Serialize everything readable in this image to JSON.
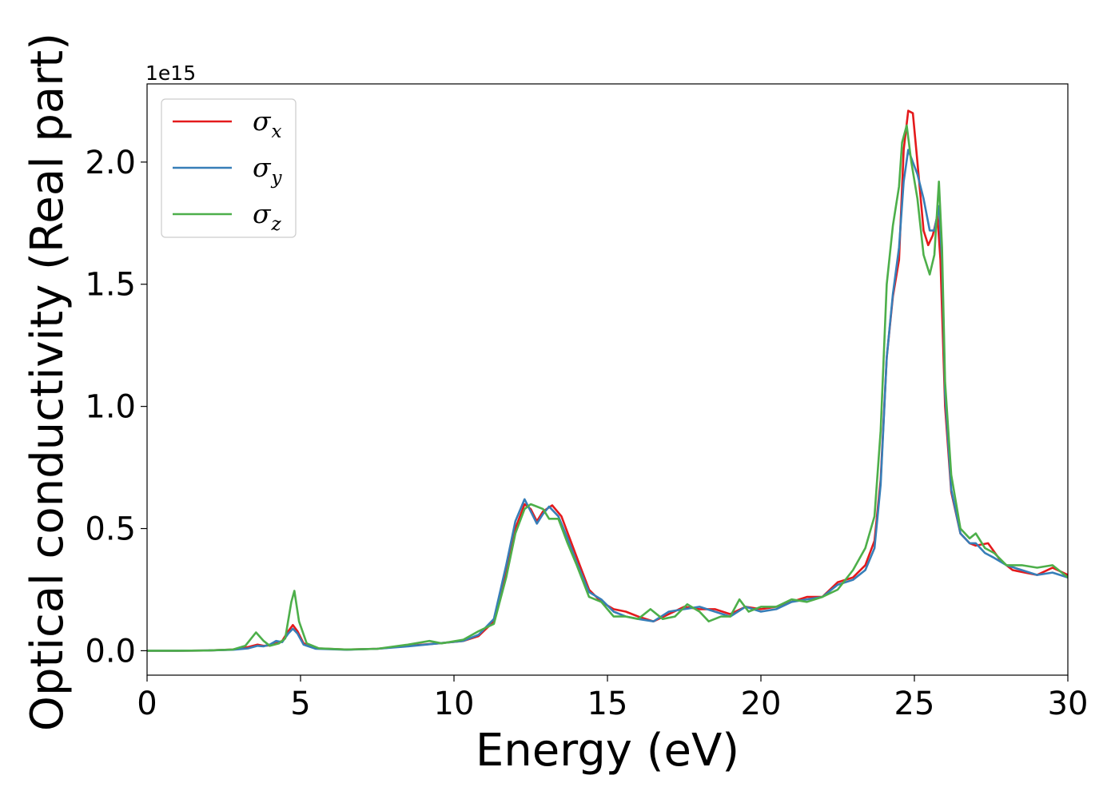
{
  "chart_data": {
    "type": "line",
    "title": "",
    "xlabel": "Energy (eV)",
    "ylabel": "Optical conductivity (Real part)",
    "y_offset_label": "1e15",
    "xlim": [
      0,
      30
    ],
    "ylim": [
      -0.1,
      2.32
    ],
    "x_ticks": [
      0,
      5,
      10,
      15,
      20,
      25,
      30
    ],
    "x_tick_labels": [
      "0",
      "5",
      "10",
      "15",
      "20",
      "25",
      "30"
    ],
    "y_ticks": [
      0.0,
      0.5,
      1.0,
      1.5,
      2.0
    ],
    "y_tick_labels": [
      "0.0",
      "0.5",
      "1.0",
      "1.5",
      "2.0"
    ],
    "grid": false,
    "legend_position": "top-left",
    "series": [
      {
        "name": "σx",
        "legend_symbol": "σ",
        "legend_sub": "x",
        "color": "#e41a1c",
        "points": [
          [
            0,
            0
          ],
          [
            1,
            0
          ],
          [
            2,
            0.001
          ],
          [
            2.8,
            0.005
          ],
          [
            3.3,
            0.015
          ],
          [
            3.6,
            0.025
          ],
          [
            3.8,
            0.02
          ],
          [
            4.0,
            0.022
          ],
          [
            4.2,
            0.03
          ],
          [
            4.4,
            0.04
          ],
          [
            4.6,
            0.08
          ],
          [
            4.75,
            0.105
          ],
          [
            4.9,
            0.08
          ],
          [
            5.1,
            0.03
          ],
          [
            5.5,
            0.01
          ],
          [
            6.5,
            0.005
          ],
          [
            7.5,
            0.008
          ],
          [
            8.5,
            0.02
          ],
          [
            9.5,
            0.03
          ],
          [
            10.3,
            0.04
          ],
          [
            10.8,
            0.06
          ],
          [
            11.3,
            0.12
          ],
          [
            11.7,
            0.33
          ],
          [
            12.0,
            0.5
          ],
          [
            12.3,
            0.6
          ],
          [
            12.5,
            0.58
          ],
          [
            12.7,
            0.53
          ],
          [
            12.9,
            0.57
          ],
          [
            13.2,
            0.595
          ],
          [
            13.5,
            0.55
          ],
          [
            13.8,
            0.45
          ],
          [
            14.1,
            0.35
          ],
          [
            14.4,
            0.25
          ],
          [
            14.8,
            0.2
          ],
          [
            15.2,
            0.17
          ],
          [
            15.6,
            0.16
          ],
          [
            16.0,
            0.14
          ],
          [
            16.5,
            0.12
          ],
          [
            17.0,
            0.15
          ],
          [
            17.5,
            0.18
          ],
          [
            18.0,
            0.17
          ],
          [
            18.5,
            0.17
          ],
          [
            19.0,
            0.15
          ],
          [
            19.5,
            0.18
          ],
          [
            20.0,
            0.17
          ],
          [
            20.5,
            0.18
          ],
          [
            21.0,
            0.2
          ],
          [
            21.5,
            0.22
          ],
          [
            22.0,
            0.22
          ],
          [
            22.5,
            0.28
          ],
          [
            23.0,
            0.3
          ],
          [
            23.4,
            0.35
          ],
          [
            23.7,
            0.45
          ],
          [
            23.9,
            0.7
          ],
          [
            24.1,
            1.2
          ],
          [
            24.3,
            1.45
          ],
          [
            24.5,
            1.6
          ],
          [
            24.65,
            2.05
          ],
          [
            24.8,
            2.21
          ],
          [
            24.95,
            2.2
          ],
          [
            25.1,
            2.0
          ],
          [
            25.3,
            1.72
          ],
          [
            25.45,
            1.66
          ],
          [
            25.6,
            1.7
          ],
          [
            25.75,
            1.78
          ],
          [
            25.85,
            1.6
          ],
          [
            26.0,
            1.0
          ],
          [
            26.2,
            0.65
          ],
          [
            26.5,
            0.48
          ],
          [
            26.8,
            0.44
          ],
          [
            27.0,
            0.43
          ],
          [
            27.4,
            0.44
          ],
          [
            27.8,
            0.37
          ],
          [
            28.2,
            0.33
          ],
          [
            28.6,
            0.32
          ],
          [
            29.0,
            0.31
          ],
          [
            29.5,
            0.34
          ],
          [
            30.0,
            0.31
          ]
        ]
      },
      {
        "name": "σy",
        "legend_symbol": "σ",
        "legend_sub": "y",
        "color": "#377eb8",
        "points": [
          [
            0,
            0
          ],
          [
            1,
            0
          ],
          [
            2,
            0.001
          ],
          [
            2.8,
            0.004
          ],
          [
            3.3,
            0.01
          ],
          [
            3.6,
            0.02
          ],
          [
            3.8,
            0.018
          ],
          [
            4.0,
            0.025
          ],
          [
            4.2,
            0.04
          ],
          [
            4.4,
            0.035
          ],
          [
            4.6,
            0.07
          ],
          [
            4.75,
            0.09
          ],
          [
            4.9,
            0.07
          ],
          [
            5.1,
            0.025
          ],
          [
            5.5,
            0.008
          ],
          [
            6.5,
            0.004
          ],
          [
            7.5,
            0.008
          ],
          [
            8.5,
            0.018
          ],
          [
            9.5,
            0.03
          ],
          [
            10.3,
            0.04
          ],
          [
            10.8,
            0.065
          ],
          [
            11.3,
            0.13
          ],
          [
            11.7,
            0.35
          ],
          [
            12.0,
            0.53
          ],
          [
            12.3,
            0.62
          ],
          [
            12.5,
            0.57
          ],
          [
            12.7,
            0.52
          ],
          [
            12.9,
            0.56
          ],
          [
            13.1,
            0.59
          ],
          [
            13.4,
            0.55
          ],
          [
            13.7,
            0.46
          ],
          [
            14.0,
            0.36
          ],
          [
            14.4,
            0.24
          ],
          [
            14.8,
            0.21
          ],
          [
            15.2,
            0.16
          ],
          [
            15.6,
            0.14
          ],
          [
            16.0,
            0.13
          ],
          [
            16.5,
            0.12
          ],
          [
            17.0,
            0.16
          ],
          [
            17.5,
            0.17
          ],
          [
            18.0,
            0.18
          ],
          [
            18.5,
            0.16
          ],
          [
            19.0,
            0.14
          ],
          [
            19.5,
            0.18
          ],
          [
            20.0,
            0.16
          ],
          [
            20.5,
            0.17
          ],
          [
            21.0,
            0.2
          ],
          [
            21.5,
            0.21
          ],
          [
            22.0,
            0.22
          ],
          [
            22.5,
            0.27
          ],
          [
            23.0,
            0.29
          ],
          [
            23.4,
            0.33
          ],
          [
            23.7,
            0.42
          ],
          [
            23.9,
            0.68
          ],
          [
            24.1,
            1.2
          ],
          [
            24.3,
            1.46
          ],
          [
            24.5,
            1.65
          ],
          [
            24.65,
            1.92
          ],
          [
            24.8,
            2.05
          ],
          [
            24.95,
            2.0
          ],
          [
            25.1,
            1.95
          ],
          [
            25.3,
            1.85
          ],
          [
            25.5,
            1.72
          ],
          [
            25.65,
            1.72
          ],
          [
            25.8,
            1.82
          ],
          [
            25.9,
            1.6
          ],
          [
            26.0,
            1.05
          ],
          [
            26.2,
            0.66
          ],
          [
            26.5,
            0.48
          ],
          [
            26.8,
            0.44
          ],
          [
            27.0,
            0.44
          ],
          [
            27.3,
            0.4
          ],
          [
            27.6,
            0.38
          ],
          [
            28.0,
            0.35
          ],
          [
            28.5,
            0.33
          ],
          [
            29.0,
            0.31
          ],
          [
            29.5,
            0.32
          ],
          [
            30.0,
            0.3
          ]
        ]
      },
      {
        "name": "σz",
        "legend_symbol": "σ",
        "legend_sub": "z",
        "color": "#4daf4a",
        "points": [
          [
            0,
            0
          ],
          [
            1,
            0
          ],
          [
            2,
            0.001
          ],
          [
            2.8,
            0.005
          ],
          [
            3.2,
            0.02
          ],
          [
            3.55,
            0.075
          ],
          [
            3.8,
            0.04
          ],
          [
            4.0,
            0.02
          ],
          [
            4.3,
            0.03
          ],
          [
            4.5,
            0.05
          ],
          [
            4.7,
            0.2
          ],
          [
            4.8,
            0.245
          ],
          [
            4.95,
            0.12
          ],
          [
            5.2,
            0.03
          ],
          [
            5.6,
            0.01
          ],
          [
            6.5,
            0.005
          ],
          [
            7.5,
            0.008
          ],
          [
            8.5,
            0.025
          ],
          [
            9.2,
            0.04
          ],
          [
            9.6,
            0.03
          ],
          [
            10.3,
            0.045
          ],
          [
            10.8,
            0.08
          ],
          [
            11.3,
            0.11
          ],
          [
            11.7,
            0.3
          ],
          [
            12.0,
            0.48
          ],
          [
            12.3,
            0.58
          ],
          [
            12.5,
            0.6
          ],
          [
            12.7,
            0.59
          ],
          [
            12.9,
            0.58
          ],
          [
            13.1,
            0.54
          ],
          [
            13.4,
            0.54
          ],
          [
            13.7,
            0.44
          ],
          [
            14.0,
            0.35
          ],
          [
            14.4,
            0.22
          ],
          [
            14.8,
            0.2
          ],
          [
            15.2,
            0.14
          ],
          [
            15.6,
            0.14
          ],
          [
            16.0,
            0.13
          ],
          [
            16.4,
            0.17
          ],
          [
            16.8,
            0.13
          ],
          [
            17.2,
            0.14
          ],
          [
            17.6,
            0.19
          ],
          [
            18.0,
            0.16
          ],
          [
            18.3,
            0.12
          ],
          [
            18.7,
            0.14
          ],
          [
            19.0,
            0.14
          ],
          [
            19.3,
            0.21
          ],
          [
            19.6,
            0.16
          ],
          [
            20.0,
            0.18
          ],
          [
            20.5,
            0.18
          ],
          [
            21.0,
            0.21
          ],
          [
            21.5,
            0.2
          ],
          [
            22.0,
            0.22
          ],
          [
            22.5,
            0.25
          ],
          [
            23.0,
            0.33
          ],
          [
            23.4,
            0.42
          ],
          [
            23.7,
            0.55
          ],
          [
            23.9,
            0.9
          ],
          [
            24.1,
            1.5
          ],
          [
            24.3,
            1.74
          ],
          [
            24.5,
            1.9
          ],
          [
            24.6,
            2.08
          ],
          [
            24.75,
            2.15
          ],
          [
            24.9,
            2.0
          ],
          [
            25.1,
            1.85
          ],
          [
            25.3,
            1.62
          ],
          [
            25.5,
            1.54
          ],
          [
            25.65,
            1.62
          ],
          [
            25.8,
            1.92
          ],
          [
            25.9,
            1.65
          ],
          [
            26.0,
            1.1
          ],
          [
            26.2,
            0.72
          ],
          [
            26.5,
            0.5
          ],
          [
            26.8,
            0.46
          ],
          [
            27.0,
            0.48
          ],
          [
            27.3,
            0.42
          ],
          [
            27.6,
            0.4
          ],
          [
            28.0,
            0.35
          ],
          [
            28.5,
            0.35
          ],
          [
            29.0,
            0.34
          ],
          [
            29.5,
            0.35
          ],
          [
            30.0,
            0.3
          ]
        ]
      }
    ]
  }
}
